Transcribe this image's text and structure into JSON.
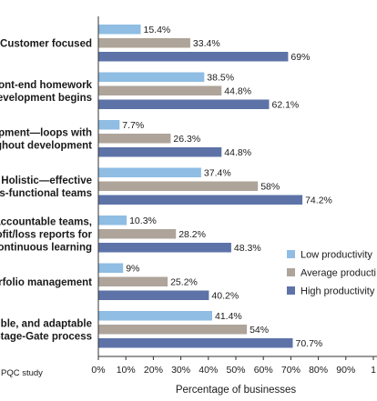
{
  "chart_data": {
    "type": "bar",
    "orientation": "horizontal",
    "categories": [
      ". Customer focused",
      "ront-end homework\nevelopment begins",
      "pment—loops with\nghout development",
      "Holistic—effective\nss-functional teams",
      "accountable teams,\nofit/loss reports for\ncontinuous learning",
      "rfolio management",
      "ble, and adaptable\nStage-Gate process"
    ],
    "series": [
      {
        "name": "Low productivity",
        "color": "#8fbde3",
        "values": [
          15.4,
          38.5,
          7.7,
          37.4,
          10.3,
          9,
          41.4
        ]
      },
      {
        "name": "Average producti",
        "color": "#aea49a",
        "values": [
          33.4,
          44.8,
          26.3,
          58,
          28.2,
          25.2,
          54
        ]
      },
      {
        "name": "High productivity",
        "color": "#5d73a8",
        "values": [
          69,
          62.1,
          44.8,
          74.2,
          48.3,
          40.2,
          70.7
        ]
      }
    ],
    "value_labels": [
      [
        "15.4%",
        "38.5%",
        "7.7%",
        "37.4%",
        "10.3%",
        "9%",
        "41.4%"
      ],
      [
        "33.4%",
        "44.8%",
        "26.3%",
        "58%",
        "28.2%",
        "25.2%",
        "54%"
      ],
      [
        "69%",
        "62.1%",
        "44.8%",
        "74.2%",
        "48.3%",
        "40.2%",
        "70.7%"
      ]
    ],
    "xlabel": "Percentage of businesses",
    "xlim": [
      0,
      100
    ],
    "xticks": [
      "0%",
      "10%",
      "20%",
      "30%",
      "40%",
      "50%",
      "60%",
      "70%",
      "80%",
      "90%",
      "1"
    ],
    "grid": false,
    "legend_position": "right",
    "source_note": "PQC study"
  }
}
